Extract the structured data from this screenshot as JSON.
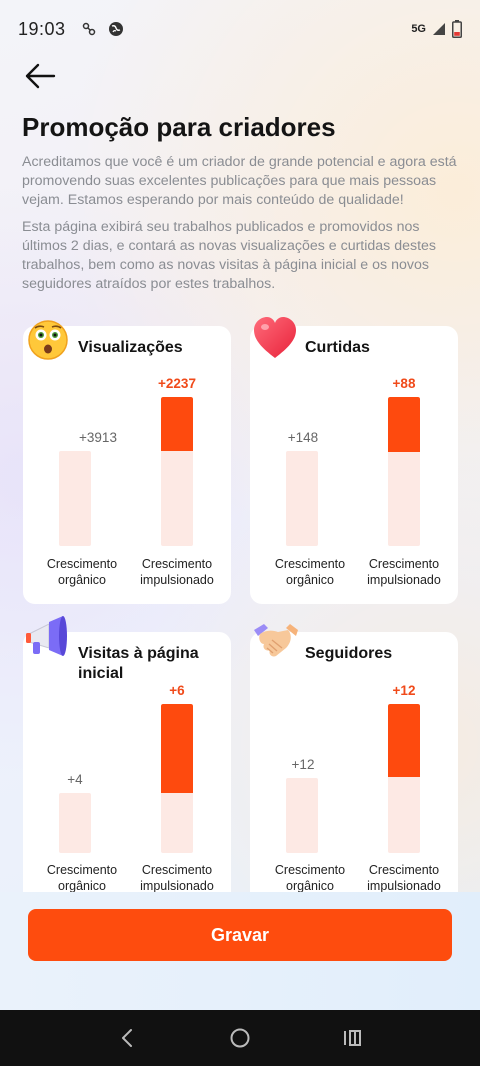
{
  "status_bar": {
    "time": "19:03",
    "network": "5G",
    "icons": [
      "notification-icon",
      "globe-icon",
      "signal-icon",
      "battery-icon"
    ]
  },
  "header": {
    "back_icon": "arrow-left-icon",
    "title": "Promoção para criadores"
  },
  "description": {
    "p1": "Acreditamos que você é um criador de grande potencial e agora está promovendo suas excelentes publicações para que mais pessoas vejam. Estamos esperando por mais conteúdo de qualidade!",
    "p2": "Esta página exibirá seu trabalhos publicados e promovidos nos últimos 2 dias, e contará as novas visualizações e curtidas destes trabalhos, bem como as novas visitas à página inicial e os novos seguidores atraídos por estes trabalhos."
  },
  "labels": {
    "organic": "Crescimento orgânico",
    "boosted": "Crescimento impulsionado"
  },
  "colors": {
    "accent": "#fe4a0e",
    "bar_light": "#fde9e4"
  },
  "cards": [
    {
      "title": "Visualizações",
      "icon": "surprised-face-icon",
      "organic_value": "+3913",
      "boosted_value": "+2237"
    },
    {
      "title": "Curtidas",
      "icon": "heart-icon",
      "organic_value": "+148",
      "boosted_value": "+88"
    },
    {
      "title": "Visitas à página inicial",
      "icon": "megaphone-icon",
      "organic_value": "+4",
      "boosted_value": "+6"
    },
    {
      "title": "Seguidores",
      "icon": "handshake-icon",
      "organic_value": "+12",
      "boosted_value": "+12"
    }
  ],
  "cta": {
    "label": "Gravar"
  },
  "nav": {
    "icons": [
      "back-nav-icon",
      "home-nav-icon",
      "recents-nav-icon"
    ]
  }
}
